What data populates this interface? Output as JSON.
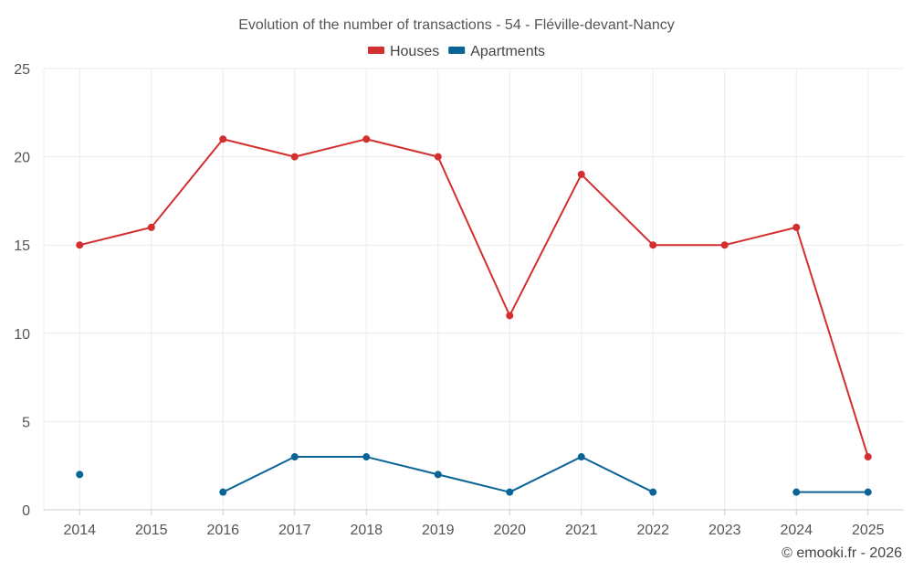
{
  "chart_data": {
    "type": "line",
    "title": "Evolution of the number of transactions - 54 - Fléville-devant-Nancy",
    "categories": [
      "2014",
      "2015",
      "2016",
      "2017",
      "2018",
      "2019",
      "2020",
      "2021",
      "2022",
      "2023",
      "2024",
      "2025"
    ],
    "series": [
      {
        "name": "Houses",
        "color": "#d32f2f",
        "values": [
          15,
          16,
          21,
          20,
          21,
          20,
          11,
          19,
          15,
          15,
          16,
          3
        ]
      },
      {
        "name": "Apartments",
        "color": "#0a6496",
        "values": [
          2,
          null,
          1,
          3,
          3,
          2,
          1,
          3,
          1,
          null,
          1,
          1
        ]
      }
    ],
    "ylim": [
      0,
      25
    ],
    "yticks": [
      0,
      5,
      10,
      15,
      20,
      25
    ],
    "xlabel": "",
    "ylabel": "",
    "grid": true,
    "legend_position": "top-center"
  },
  "credit": "© emooki.fr - 2026"
}
